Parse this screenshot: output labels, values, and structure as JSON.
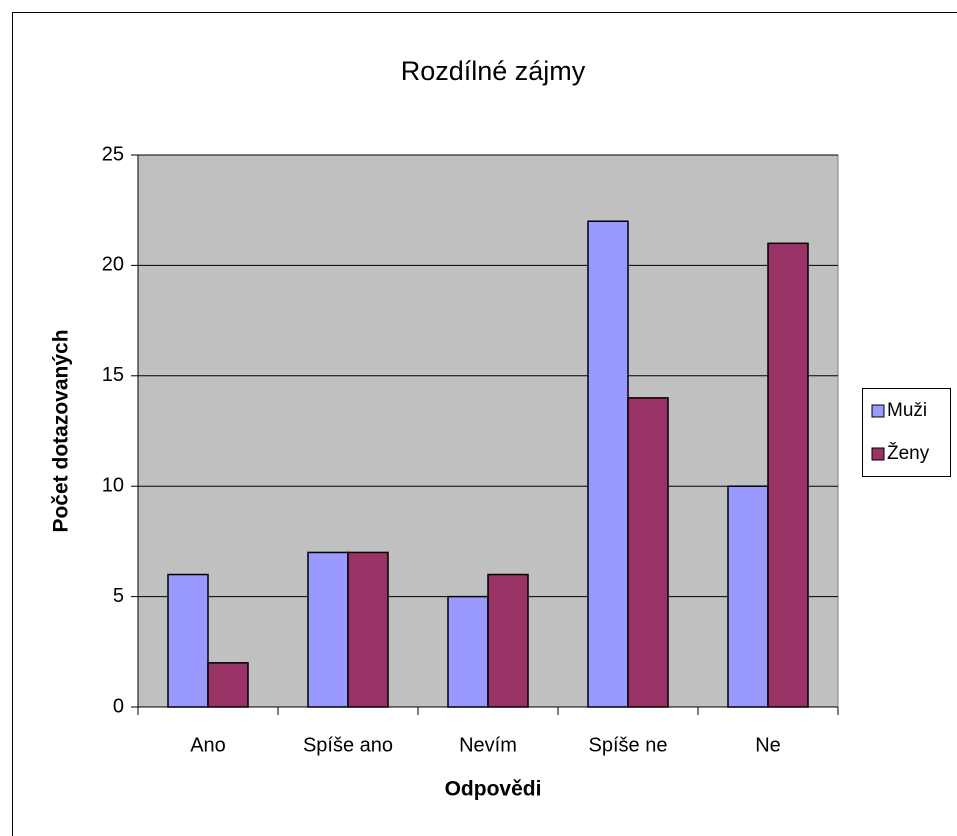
{
  "chart_data": {
    "type": "bar",
    "title": "Rozdílné zájmy",
    "x_label": "Odpovědi",
    "y_label": "Počet dotazovaných",
    "categories": [
      "Ano",
      "Spíše ano",
      "Nevím",
      "Spíše ne",
      "Ne"
    ],
    "series": [
      {
        "name": "Muži",
        "color": "#9999ff",
        "values": [
          6,
          7,
          5,
          22,
          10
        ]
      },
      {
        "name": "Ženy",
        "color": "#993366",
        "values": [
          2,
          7,
          6,
          14,
          21
        ]
      }
    ],
    "ylim": [
      0,
      25
    ],
    "yticks": [
      0,
      5,
      10,
      15,
      20,
      25
    ],
    "grid": true,
    "legend": "right"
  }
}
